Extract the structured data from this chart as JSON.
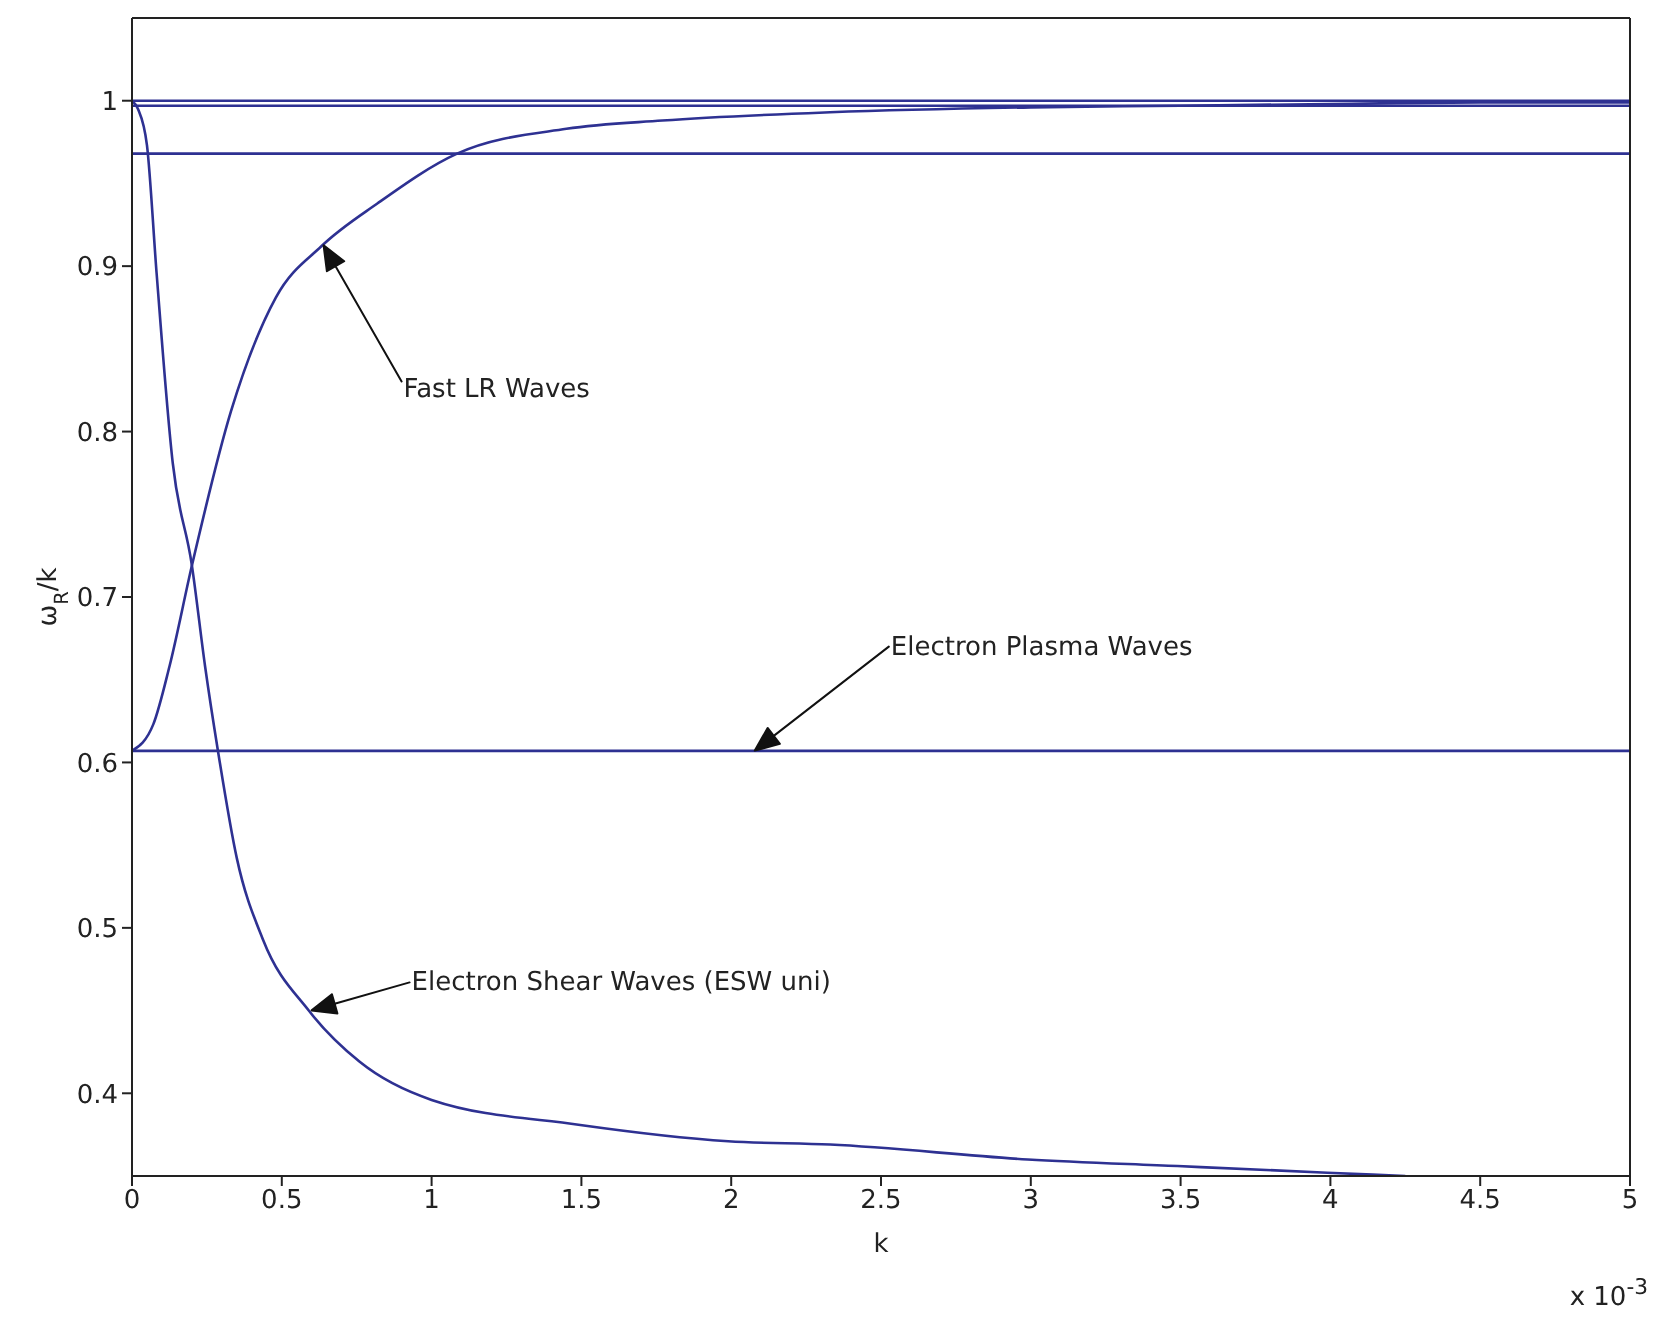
{
  "chart_data": {
    "type": "line",
    "xlabel": "k",
    "ylabel": "ω$_{R}$/k",
    "xlim": [
      0,
      5
    ],
    "xticks": [
      0,
      0.5,
      1,
      1.5,
      2,
      2.5,
      3,
      3.5,
      4,
      4.5,
      5
    ],
    "ylim": [
      0.35,
      1.05
    ],
    "yticks": [
      0.4,
      0.5,
      0.6,
      0.7,
      0.8,
      0.9,
      1
    ],
    "marker": "none",
    "line_style": "solid",
    "series": [
      {
        "color": "#2e3192",
        "x": [
          0,
          5
        ],
        "values": [
          1,
          1
        ]
      },
      {
        "color": "#2e3192",
        "x": [
          0,
          5
        ],
        "values": [
          0.997,
          0.997
        ]
      },
      {
        "color": "#2e3192",
        "x": [
          0,
          5
        ],
        "values": [
          0.968,
          0.968
        ]
      },
      {
        "color": "#2e3192",
        "x": [
          0,
          5
        ],
        "values": [
          0.607,
          0.607
        ]
      },
      {
        "color": "#2e3192",
        "x": [
          0,
          0.071,
          0.125,
          0.2,
          0.33,
          0.48,
          0.632,
          0.82,
          1.085,
          1.45,
          1.77,
          2.33,
          3,
          3.5,
          4,
          4.5,
          5
        ],
        "values": [
          0.607,
          0.623,
          0.658,
          0.719,
          0.812,
          0.881,
          0.912,
          0.938,
          0.968,
          0.983,
          0.988,
          0.993,
          0.996,
          0.997,
          0.998,
          0.999,
          0.999
        ]
      },
      {
        "color": "#2e3192",
        "x": [
          0,
          0.02,
          0.05,
          0.082,
          0.136,
          0.2,
          0.244,
          0.286,
          0.35,
          0.437,
          0.59,
          0.76,
          1,
          1.49,
          1.99,
          2.33,
          2.99,
          3.49,
          3.99,
          4.25
        ],
        "values": [
          1,
          0.995,
          0.973,
          0.896,
          0.781,
          0.719,
          0.658,
          0.608,
          0.542,
          0.493,
          0.45,
          0.419,
          0.396,
          0.381,
          0.371,
          0.369,
          0.36,
          0.356,
          0.352,
          0.35
        ]
      }
    ],
    "annotations": [
      "Fast LR Waves",
      "Electron Plasma Waves",
      "Electron Shear Waves (ESW uni)",
      "x 10$^{-3}$"
    ]
  }
}
